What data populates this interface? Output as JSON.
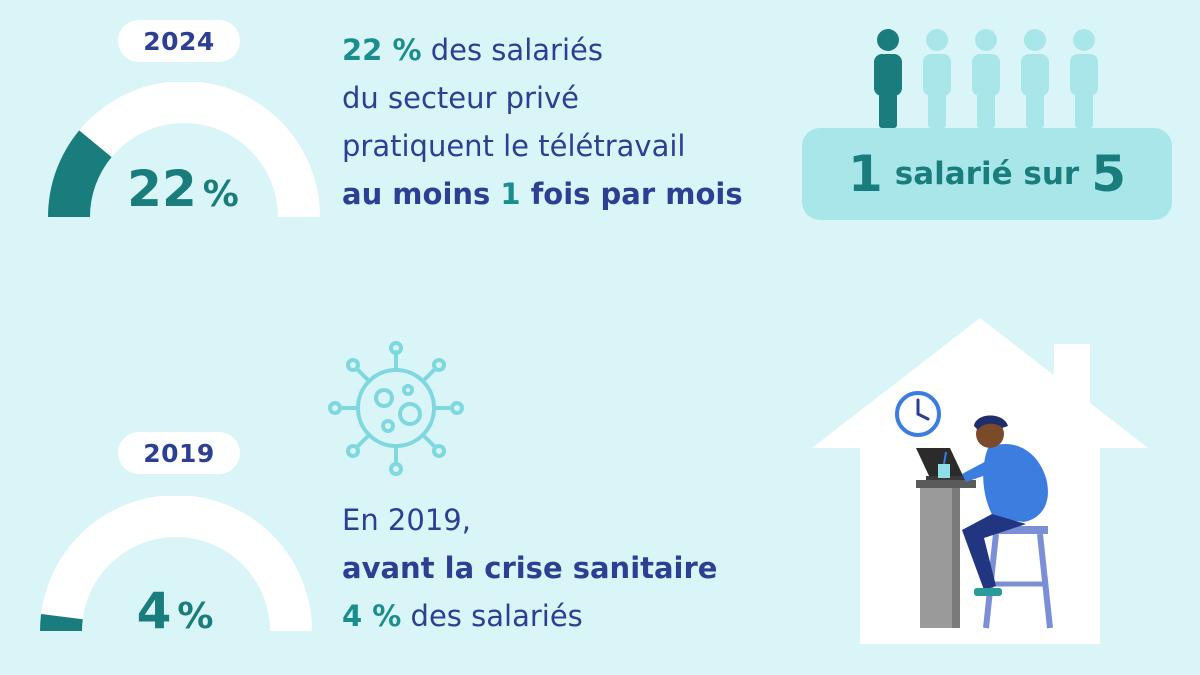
{
  "section_2024": {
    "year": "2024",
    "gauge": {
      "value_text": "22",
      "unit": "%",
      "fraction": 0.22
    },
    "line1_highlight": "22 %",
    "line1_rest": " des salariés",
    "line2": "du secteur privé",
    "line3": "pratiquent le télétravail",
    "line4_a": "au moins ",
    "line4_num": "1",
    "line4_b": " fois par mois",
    "ratio": {
      "first": "1",
      "middle": "salarié sur",
      "last": "5"
    },
    "people": {
      "total": 5,
      "highlighted": 1
    }
  },
  "section_2019": {
    "year": "2019",
    "gauge": {
      "value_text": "4",
      "unit": "%",
      "fraction": 0.04
    },
    "line1": "En 2019,",
    "line2": "avant la crise sanitaire",
    "line3_highlight": "4 %",
    "line3_rest": " des salariés"
  },
  "colors": {
    "background": "#d9f5f8",
    "navy": "#2c3f93",
    "teal": "#1a7d7d",
    "light_teal": "#a8e6ea"
  },
  "icons": [
    "person-icon",
    "virus-icon",
    "house-icon",
    "clock-icon",
    "remote-worker-illustration"
  ]
}
